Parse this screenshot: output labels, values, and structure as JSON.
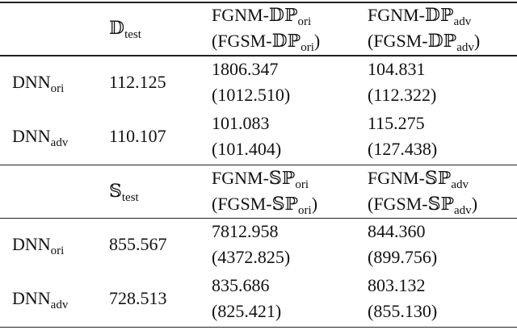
{
  "sections": [
    {
      "header": [
        [],
        [
          [
            {
              "text": "𝔻"
            },
            {
              "sub": "test"
            }
          ]
        ],
        [
          [
            {
              "text": "FGNM-𝔻ℙ"
            },
            {
              "sub": "ori"
            }
          ],
          [
            {
              "text": "(FGSM-𝔻ℙ"
            },
            {
              "sub": "ori"
            },
            {
              "text": ")"
            }
          ]
        ],
        [
          [
            {
              "text": "FGNM-𝔻ℙ"
            },
            {
              "sub": "adv"
            }
          ],
          [
            {
              "text": "(FGSM-𝔻ℙ"
            },
            {
              "sub": "adv"
            },
            {
              "text": ")"
            }
          ]
        ]
      ],
      "rows": [
        [
          [
            [
              {
                "text": "DNN"
              },
              {
                "sub": "ori"
              }
            ]
          ],
          [
            [
              {
                "text": "112.125"
              }
            ]
          ],
          [
            [
              {
                "text": "1806.347"
              }
            ],
            [
              {
                "text": "(1012.510)"
              }
            ]
          ],
          [
            [
              {
                "text": "104.831"
              }
            ],
            [
              {
                "text": "(112.322)"
              }
            ]
          ]
        ],
        [
          [
            [
              {
                "text": "DNN"
              },
              {
                "sub": "adv"
              }
            ]
          ],
          [
            [
              {
                "text": "110.107"
              }
            ]
          ],
          [
            [
              {
                "text": "101.083"
              }
            ],
            [
              {
                "text": "(101.404)"
              }
            ]
          ],
          [
            [
              {
                "text": "115.275"
              }
            ],
            [
              {
                "text": "(127.438)"
              }
            ]
          ]
        ]
      ]
    },
    {
      "header": [
        [],
        [
          [
            {
              "text": "𝕊"
            },
            {
              "sub": "test"
            }
          ]
        ],
        [
          [
            {
              "text": "FGNM-𝕊ℙ"
            },
            {
              "sub": "ori"
            }
          ],
          [
            {
              "text": "(FGSM-𝕊ℙ"
            },
            {
              "sub": "ori"
            },
            {
              "text": ")"
            }
          ]
        ],
        [
          [
            {
              "text": "FGNM-𝕊ℙ"
            },
            {
              "sub": "adv"
            }
          ],
          [
            {
              "text": "(FGSM-𝕊ℙ"
            },
            {
              "sub": "adv"
            },
            {
              "text": ")"
            }
          ]
        ]
      ],
      "rows": [
        [
          [
            [
              {
                "text": "DNN"
              },
              {
                "sub": "ori"
              }
            ]
          ],
          [
            [
              {
                "text": "855.567"
              }
            ]
          ],
          [
            [
              {
                "text": "7812.958"
              }
            ],
            [
              {
                "text": "(4372.825)"
              }
            ]
          ],
          [
            [
              {
                "text": "844.360"
              }
            ],
            [
              {
                "text": "(899.756)"
              }
            ]
          ]
        ],
        [
          [
            [
              {
                "text": "DNN"
              },
              {
                "sub": "adv"
              }
            ]
          ],
          [
            [
              {
                "text": "728.513"
              }
            ]
          ],
          [
            [
              {
                "text": "835.686"
              }
            ],
            [
              {
                "text": "(825.421)"
              }
            ]
          ],
          [
            [
              {
                "text": "803.132"
              }
            ],
            [
              {
                "text": "(855.130)"
              }
            ]
          ]
        ]
      ]
    }
  ]
}
